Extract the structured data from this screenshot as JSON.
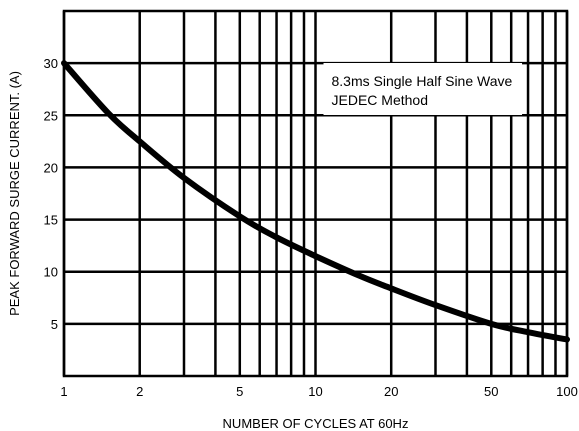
{
  "chart_data": {
    "type": "line",
    "xlabel": "NUMBER OF CYCLES AT 60Hz",
    "ylabel": "PEAK FORWARD SURGE CURRENT. (A)",
    "x_scale": "log",
    "xlim": [
      1,
      100
    ],
    "ylim": [
      0,
      35
    ],
    "x_ticks": [
      1,
      2,
      5,
      10,
      20,
      50,
      100
    ],
    "x_gridlines": [
      1,
      2,
      3,
      4,
      5,
      6,
      7,
      8,
      9,
      10,
      20,
      30,
      40,
      50,
      60,
      70,
      80,
      90,
      100
    ],
    "y_ticks": [
      5,
      10,
      15,
      20,
      25,
      30
    ],
    "grid": true,
    "annotation": {
      "line1": "8.3ms Single Half Sine Wave",
      "line2": "JEDEC Method",
      "placement": "top-right"
    },
    "series": [
      {
        "x": [
          1,
          1.5,
          2,
          3,
          5,
          7,
          10,
          15,
          20,
          30,
          50,
          70,
          100
        ],
        "y": [
          30,
          25.2,
          22.5,
          19,
          15.3,
          13.3,
          11.5,
          9.6,
          8.4,
          6.8,
          5,
          4.2,
          3.5
        ]
      }
    ],
    "colors": {
      "line": "#000000",
      "grid": "#000000",
      "background": "#ffffff"
    }
  }
}
